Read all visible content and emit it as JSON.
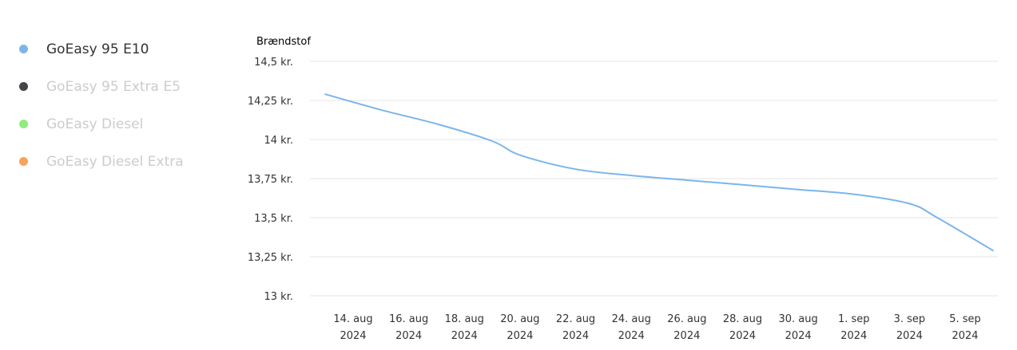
{
  "legend": {
    "items": [
      {
        "label": "GoEasy 95 E10",
        "color": "#7cb5ec",
        "active": true
      },
      {
        "label": "GoEasy 95 Extra E5",
        "color": "#434348",
        "active": false
      },
      {
        "label": "GoEasy Diesel",
        "color": "#90ed7d",
        "active": false
      },
      {
        "label": "GoEasy Diesel Extra",
        "color": "#f7a35c",
        "active": false
      }
    ]
  },
  "chart_data": {
    "type": "line",
    "ylabel": "Brændstof",
    "ylim": [
      13,
      14.5
    ],
    "y_ticks": [
      "13 kr.",
      "13,25 kr.",
      "13,5 kr.",
      "13,75 kr.",
      "14 kr.",
      "14,25 kr.",
      "14,5 kr."
    ],
    "y_tick_values": [
      13,
      13.25,
      13.5,
      13.75,
      14,
      14.25,
      14.5
    ],
    "x_ticks": [
      {
        "date": "2024-08-14",
        "line1": "14. aug",
        "line2": "2024"
      },
      {
        "date": "2024-08-16",
        "line1": "16. aug",
        "line2": "2024"
      },
      {
        "date": "2024-08-18",
        "line1": "18. aug",
        "line2": "2024"
      },
      {
        "date": "2024-08-20",
        "line1": "20. aug",
        "line2": "2024"
      },
      {
        "date": "2024-08-22",
        "line1": "22. aug",
        "line2": "2024"
      },
      {
        "date": "2024-08-24",
        "line1": "24. aug",
        "line2": "2024"
      },
      {
        "date": "2024-08-26",
        "line1": "26. aug",
        "line2": "2024"
      },
      {
        "date": "2024-08-28",
        "line1": "28. aug",
        "line2": "2024"
      },
      {
        "date": "2024-08-30",
        "line1": "30. aug",
        "line2": "2024"
      },
      {
        "date": "2024-09-01",
        "line1": "1. sep",
        "line2": "2024"
      },
      {
        "date": "2024-09-03",
        "line1": "3. sep",
        "line2": "2024"
      },
      {
        "date": "2024-09-05",
        "line1": "5. sep",
        "line2": "2024"
      }
    ],
    "grid": true,
    "series": [
      {
        "name": "GoEasy 95 E10",
        "color": "#7cb5ec",
        "points": [
          {
            "x": "2024-08-13",
            "y": 14.29
          },
          {
            "x": "2024-08-15",
            "y": 14.19
          },
          {
            "x": "2024-08-17",
            "y": 14.1
          },
          {
            "x": "2024-08-19",
            "y": 13.99
          },
          {
            "x": "2024-08-20",
            "y": 13.9
          },
          {
            "x": "2024-08-22",
            "y": 13.81
          },
          {
            "x": "2024-08-24",
            "y": 13.77
          },
          {
            "x": "2024-08-26",
            "y": 13.74
          },
          {
            "x": "2024-08-28",
            "y": 13.71
          },
          {
            "x": "2024-08-30",
            "y": 13.68
          },
          {
            "x": "2024-09-01",
            "y": 13.65
          },
          {
            "x": "2024-09-03",
            "y": 13.59
          },
          {
            "x": "2024-09-04",
            "y": 13.5
          },
          {
            "x": "2024-09-06",
            "y": 13.29
          }
        ]
      }
    ]
  }
}
